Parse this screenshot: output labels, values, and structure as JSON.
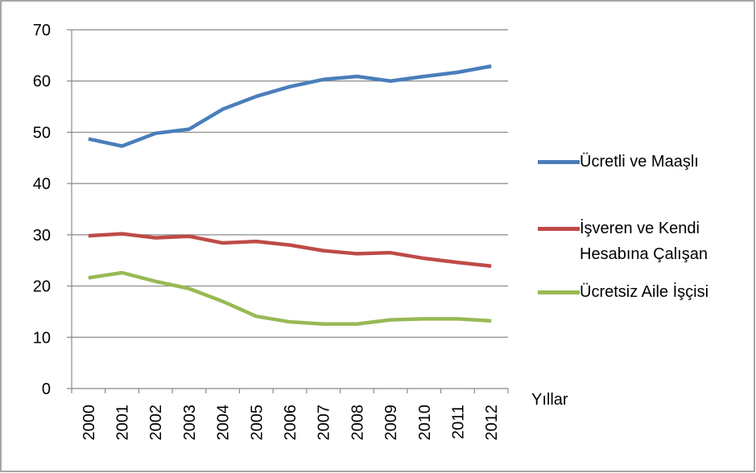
{
  "chart_data": {
    "type": "line",
    "categories": [
      "2000",
      "2001",
      "2002",
      "2003",
      "2004",
      "2005",
      "2006",
      "2007",
      "2008",
      "2009",
      "2010",
      "2011",
      "2012"
    ],
    "series": [
      {
        "name": "Ücretli ve Maaşlı",
        "color": "#4a7ebb",
        "values": [
          48.7,
          47.3,
          49.8,
          50.6,
          54.5,
          57.0,
          58.9,
          60.3,
          60.9,
          60.0,
          60.9,
          61.7,
          62.9
        ]
      },
      {
        "name": "İşveren ve Kendi Hesabına Çalışan",
        "color": "#be4b48",
        "values": [
          29.8,
          30.2,
          29.4,
          29.7,
          28.4,
          28.7,
          28.0,
          26.9,
          26.3,
          26.5,
          25.4,
          24.6,
          23.9
        ]
      },
      {
        "name": "Ücretsiz Aile İşçisi",
        "color": "#98b954",
        "values": [
          21.6,
          22.6,
          20.9,
          19.5,
          17.0,
          14.1,
          13.0,
          12.6,
          12.6,
          13.4,
          13.6,
          13.6,
          13.2
        ]
      }
    ],
    "xlabel": "Yıllar",
    "ylim": [
      0,
      70
    ],
    "yticks": [
      0,
      10,
      20,
      30,
      40,
      50,
      60,
      70
    ],
    "grid": true,
    "legend": "right"
  }
}
